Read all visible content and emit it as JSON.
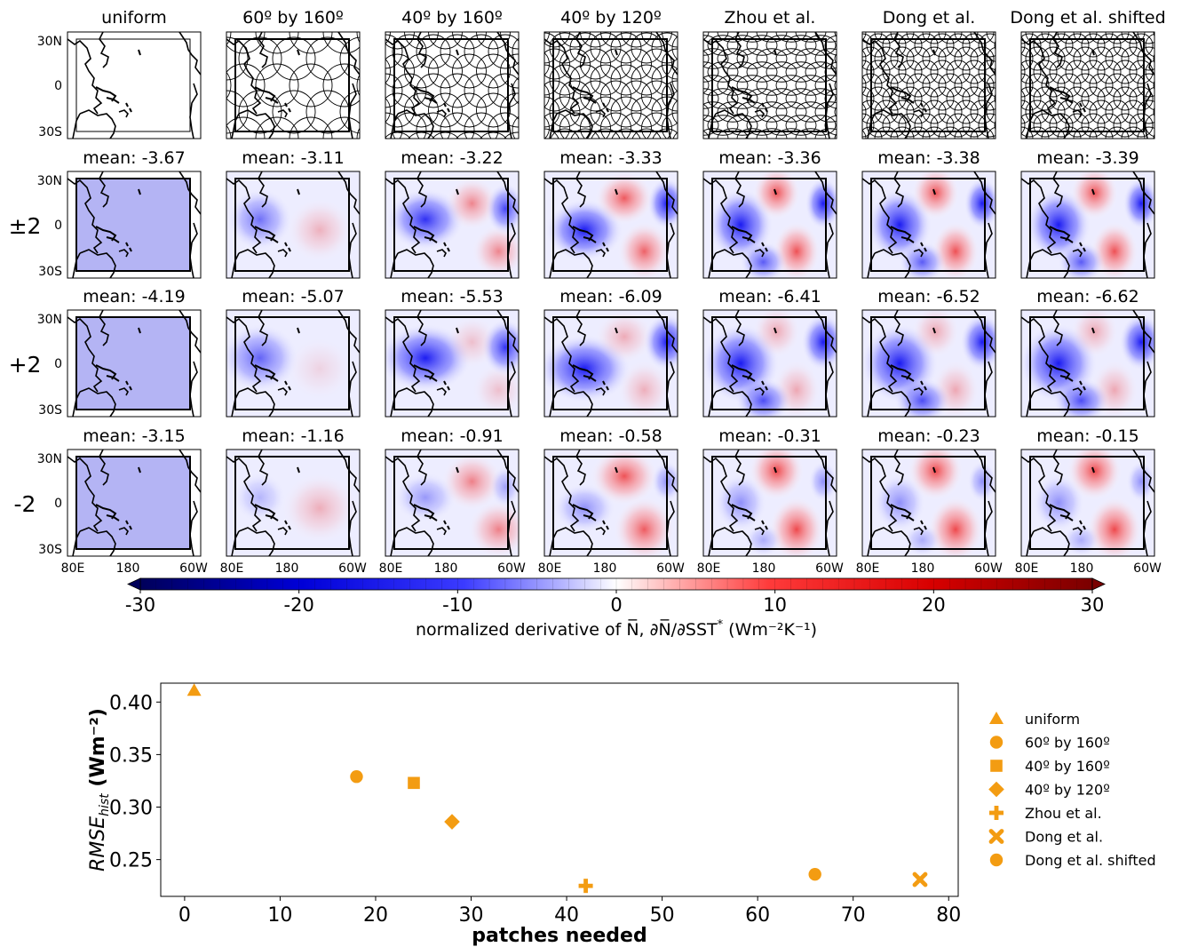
{
  "chart_data": [
    {
      "type": "heatmap",
      "columns": [
        "uniform",
        "60º by 160º",
        "40º by 160º",
        "40º by 120º",
        "Zhou et al.",
        "Dong et al.",
        "Dong et al. shifted"
      ],
      "rows": [
        {
          "label": "",
          "means": []
        },
        {
          "label": "±2",
          "means": [
            "mean: -3.67",
            "mean: -3.11",
            "mean: -3.22",
            "mean: -3.33",
            "mean: -3.36",
            "mean: -3.38",
            "mean: -3.39"
          ]
        },
        {
          "label": "+2",
          "means": [
            "mean: -4.19",
            "mean: -5.07",
            "mean: -5.53",
            "mean: -6.09",
            "mean: -6.41",
            "mean: -6.52",
            "mean: -6.62"
          ]
        },
        {
          "label": "-2",
          "means": [
            "mean: -3.15",
            "mean: -1.16",
            "mean: -0.91",
            "mean: -0.58",
            "mean: -0.31",
            "mean: -0.23",
            "mean: -0.15"
          ]
        }
      ],
      "map_yticks": [
        "30N",
        "0",
        "30S"
      ],
      "map_xticks": [
        "80E",
        "180",
        "60W"
      ],
      "colorbar": {
        "ticks": [
          "-30",
          "-20",
          "-10",
          "0",
          "10",
          "20",
          "30"
        ],
        "range": [
          -30,
          30
        ],
        "cmap": "seismic",
        "label_prefix": "normalized derivative of ",
        "label_suffix": "  (Wm⁻²K⁻¹)"
      }
    },
    {
      "type": "scatter",
      "xlabel": "patches needed",
      "ylabel_main": "RMSE",
      "ylabel_sub": "hist",
      "ylabel_units": " (Wm⁻²)",
      "xlim": [
        -2.5,
        81
      ],
      "ylim": [
        0.215,
        0.418
      ],
      "xticks": [
        0,
        10,
        20,
        30,
        40,
        50,
        60,
        70,
        80
      ],
      "yticks": [
        "0.25",
        "0.30",
        "0.35",
        "0.40"
      ],
      "color": "#f39c12",
      "series": [
        {
          "name": "uniform",
          "marker": "triangle",
          "x": 1,
          "y": 0.411
        },
        {
          "name": "60º by 160º",
          "marker": "circle",
          "x": 18,
          "y": 0.329
        },
        {
          "name": "40º by 160º",
          "marker": "square",
          "x": 24,
          "y": 0.323
        },
        {
          "name": "40º by 120º",
          "marker": "diamond",
          "x": 28,
          "y": 0.286
        },
        {
          "name": "Zhou et al.",
          "marker": "plus",
          "x": 42,
          "y": 0.225
        },
        {
          "name": "Dong et al.",
          "marker": "x",
          "x": 77,
          "y": 0.231
        },
        {
          "name": "Dong et al. shifted",
          "marker": "circle",
          "x": 66,
          "y": 0.236
        }
      ]
    }
  ]
}
